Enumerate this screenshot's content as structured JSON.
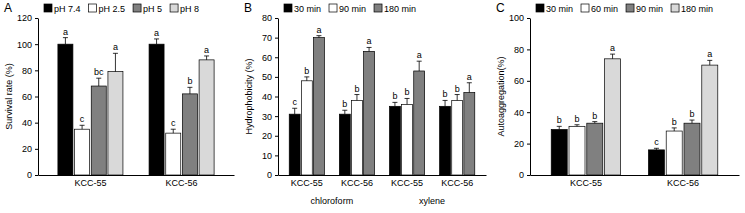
{
  "chart_data": [
    {
      "type": "bar",
      "title": "A",
      "y_label": "Survival rate (%)",
      "categories": [
        "KCC-55",
        "KCC-56"
      ],
      "ylim": [
        0,
        120
      ],
      "yticks": [
        0,
        20,
        40,
        60,
        80,
        100,
        120
      ],
      "legend": "top",
      "series": [
        {
          "name": "pH 7.4",
          "color": "#000000",
          "values": [
            100,
            100
          ],
          "errors": [
            5,
            4
          ],
          "significance": [
            "a",
            "a"
          ]
        },
        {
          "name": "pH 2.5",
          "color": "#ffffff",
          "values": [
            35,
            32
          ],
          "errors": [
            3,
            3
          ],
          "significance": [
            "c",
            "c"
          ]
        },
        {
          "name": "pH 5",
          "color": "#808080",
          "values": [
            68,
            62
          ],
          "errors": [
            6,
            5
          ],
          "significance": [
            "bc",
            "b"
          ]
        },
        {
          "name": "pH 8",
          "color": "#d9d9d9",
          "values": [
            79,
            88
          ],
          "errors": [
            14,
            3
          ],
          "significance": [
            "a",
            "a"
          ]
        }
      ]
    },
    {
      "type": "bar",
      "title": "B",
      "y_label": "Hydrophobicity (%)",
      "categories": [
        "KCC-55",
        "KCC-56",
        "KCC-55",
        "KCC-56"
      ],
      "groups": [
        {
          "name": "chloroform",
          "size": 2
        },
        {
          "name": "xylene",
          "size": 2
        }
      ],
      "ylim": [
        0,
        80
      ],
      "yticks": [
        0,
        10,
        20,
        30,
        40,
        50,
        60,
        70,
        80
      ],
      "legend": "top",
      "series": [
        {
          "name": "30 min",
          "color": "#000000",
          "values": [
            31,
            31,
            35,
            35
          ],
          "errors": [
            3,
            2,
            2,
            3
          ],
          "significance": [
            "c",
            "b",
            "b",
            "b"
          ]
        },
        {
          "name": "90 min",
          "color": "#ffffff",
          "values": [
            48,
            38,
            36,
            38
          ],
          "errors": [
            2,
            3,
            3,
            3
          ],
          "significance": [
            "b",
            "b",
            "b",
            "b"
          ]
        },
        {
          "name": "180 min",
          "color": "#808080",
          "values": [
            70,
            63,
            53,
            42
          ],
          "errors": [
            1,
            2,
            5,
            5
          ],
          "significance": [
            "a",
            "a",
            "a",
            "a"
          ]
        }
      ]
    },
    {
      "type": "bar",
      "title": "C",
      "y_label": "Autoaggregation(%)",
      "categories": [
        "KCC-55",
        "KCC-56"
      ],
      "ylim": [
        0,
        100
      ],
      "yticks": [
        0,
        20,
        40,
        60,
        80,
        100
      ],
      "legend": "top",
      "series": [
        {
          "name": "30 min",
          "color": "#000000",
          "values": [
            29,
            16
          ],
          "errors": [
            2,
            1
          ],
          "significance": [
            "b",
            "c"
          ]
        },
        {
          "name": "60 min",
          "color": "#ffffff",
          "values": [
            31,
            28
          ],
          "errors": [
            1,
            2
          ],
          "significance": [
            "b",
            "b"
          ]
        },
        {
          "name": "90 min",
          "color": "#808080",
          "values": [
            33,
            33
          ],
          "errors": [
            1,
            2
          ],
          "significance": [
            "b",
            "b"
          ]
        },
        {
          "name": "180 min",
          "color": "#d9d9d9",
          "values": [
            74,
            70
          ],
          "errors": [
            3,
            3
          ],
          "significance": [
            "a",
            "a"
          ]
        }
      ]
    }
  ]
}
